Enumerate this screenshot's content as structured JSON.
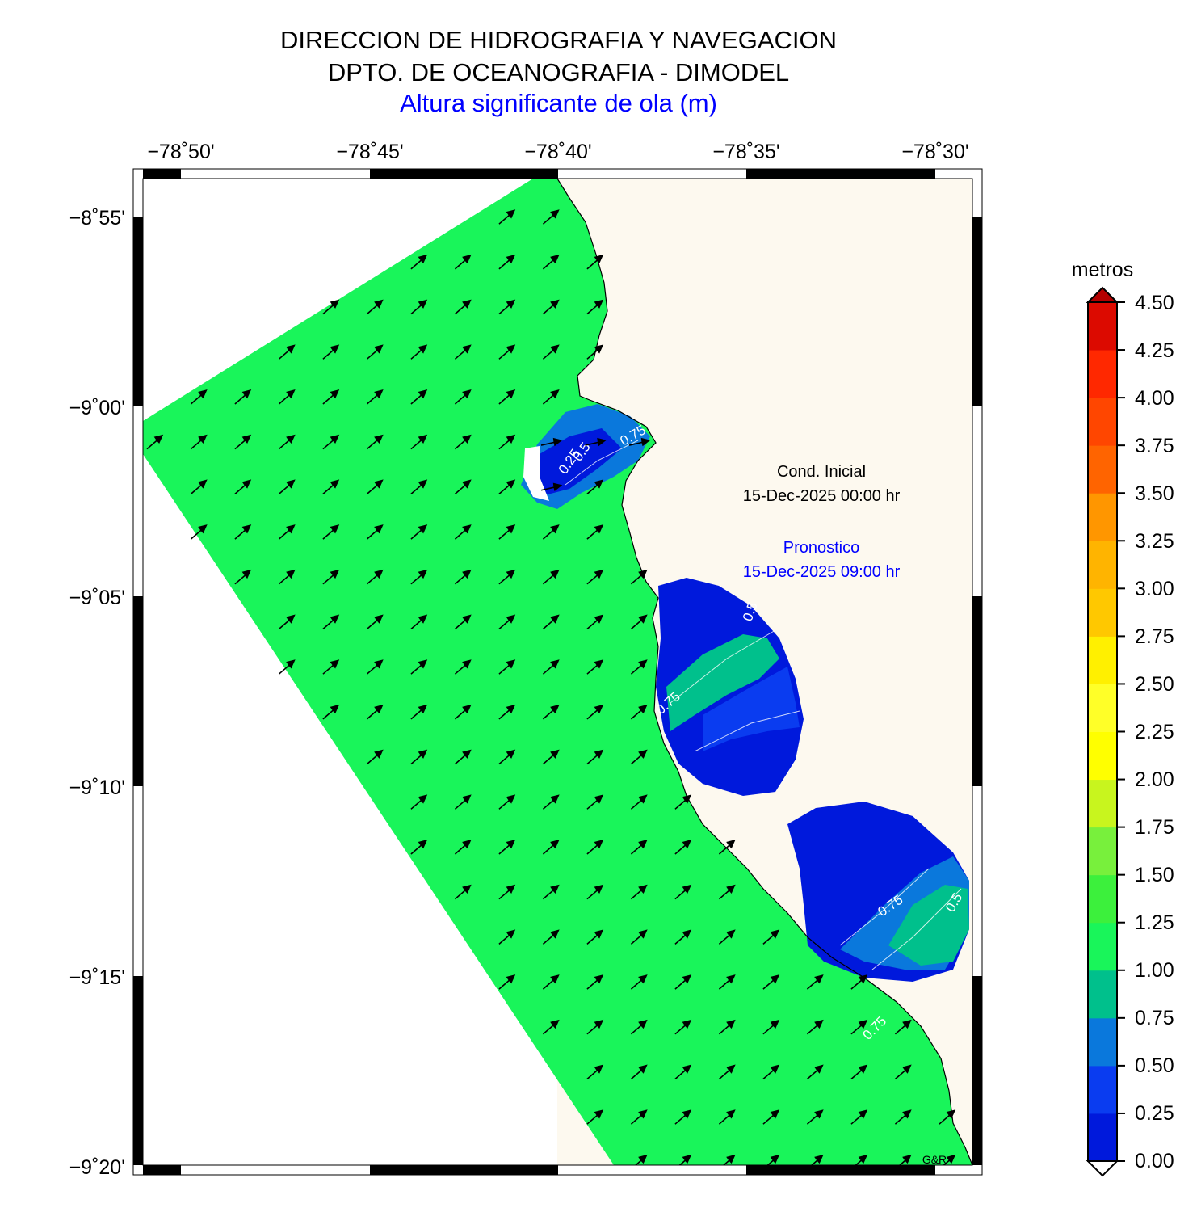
{
  "header": {
    "line1": "DIRECCION DE HIDROGRAFIA Y NAVEGACION",
    "line2": "DPTO. DE OCEANOGRAFIA - DIMODEL",
    "line3": "Altura significante de ola (m)"
  },
  "map": {
    "lon_labels": [
      "−78˚50'",
      "−78˚45'",
      "−78˚40'",
      "−78˚35'",
      "−78˚30'"
    ],
    "lat_labels": [
      "−8˚55'",
      "−9˚00'",
      "−9˚05'",
      "−9˚10'",
      "−9˚15'",
      "−9˚20'"
    ],
    "info": {
      "cond_label": "Cond. Inicial",
      "cond_time": "15-Dec-2025 00:00 hr",
      "forecast_label": "Pronostico",
      "forecast_time": "15-Dec-2025 09:00 hr"
    },
    "credit": "G&R",
    "contour_labels": [
      "0.5",
      "0.75",
      "0.25",
      "0.5",
      "0.75",
      "0.75",
      "0.5",
      "0.75",
      "0.5",
      "0.5"
    ],
    "colors": {
      "sea_default": "#19f55a",
      "land": "#fdf9ef",
      "low_zone": "#0019dc",
      "mid_zone": "#0a3cf0",
      "zone_050": "#0a78dc",
      "zone_075": "#00c08c",
      "arrow": "#000000"
    }
  },
  "colorbar": {
    "unit": "metros",
    "tick_labels": [
      "4.50",
      "4.25",
      "4.00",
      "3.75",
      "3.50",
      "3.25",
      "3.00",
      "2.75",
      "2.50",
      "2.25",
      "2.00",
      "1.75",
      "1.50",
      "1.25",
      "1.00",
      "0.75",
      "0.50",
      "0.25",
      "0.00"
    ],
    "band_colors": [
      "#0019dc",
      "#0a3cf0",
      "#0a78dc",
      "#00c08c",
      "#19f55a",
      "#3cf03c",
      "#78f03c",
      "#c8f51e",
      "#ffff00",
      "#ffff28",
      "#fff000",
      "#ffc800",
      "#ffb400",
      "#ff9600",
      "#ff6400",
      "#ff4600",
      "#ff2800",
      "#dc0a00",
      "#b40000"
    ],
    "under_color": "#ffffff",
    "over_color": "#b40000"
  }
}
